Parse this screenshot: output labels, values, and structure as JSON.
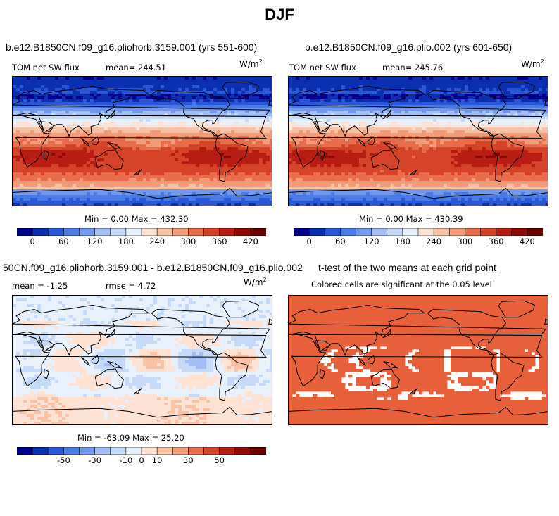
{
  "figure_title": "DJF",
  "chart_data": [
    {
      "type": "heatmap",
      "title": "b.e12.B1850CN.f09_g16.pliohorb.3159.001 (yrs 551-600)",
      "variable": "TOM net SW flux",
      "mean_label": "mean= 244.51",
      "units": "W/m",
      "units_exp": "2",
      "minmax_label": "Min =   0.00 Max = 432.30",
      "min": 0.0,
      "max": 432.3,
      "mean": 244.51,
      "colorbar": {
        "levels": [
          0,
          30,
          60,
          90,
          120,
          150,
          180,
          210,
          240,
          270,
          300,
          330,
          360,
          390,
          420
        ],
        "tick_labels": [
          "0",
          "60",
          "120",
          "180",
          "240",
          "300",
          "360",
          "420"
        ],
        "colors": [
          "#00008a",
          "#0a2fb0",
          "#2a57d6",
          "#4a7ae6",
          "#7399ef",
          "#a2bdf4",
          "#c5daf8",
          "#e7f0fb",
          "#fde2d3",
          "#f9c2a5",
          "#f29b78",
          "#e86d4c",
          "#d54328",
          "#b81d13",
          "#8e0b05",
          "#6b0000"
        ]
      }
    },
    {
      "type": "heatmap",
      "title": "b.e12.B1850CN.f09_g16.plio.002 (yrs 601-650)",
      "variable": "TOM net SW flux",
      "mean_label": "mean= 245.76",
      "units": "W/m",
      "units_exp": "2",
      "minmax_label": "Min =   0.00 Max = 430.39",
      "min": 0.0,
      "max": 430.39,
      "mean": 245.76,
      "colorbar": {
        "levels": [
          0,
          30,
          60,
          90,
          120,
          150,
          180,
          210,
          240,
          270,
          300,
          330,
          360,
          390,
          420
        ],
        "tick_labels": [
          "0",
          "60",
          "120",
          "180",
          "240",
          "300",
          "360",
          "420"
        ],
        "colors": [
          "#00008a",
          "#0a2fb0",
          "#2a57d6",
          "#4a7ae6",
          "#7399ef",
          "#a2bdf4",
          "#c5daf8",
          "#e7f0fb",
          "#fde2d3",
          "#f9c2a5",
          "#f29b78",
          "#e86d4c",
          "#d54328",
          "#b81d13",
          "#8e0b05",
          "#6b0000"
        ]
      }
    },
    {
      "type": "heatmap",
      "title": "50CN.f09_g16.pliohorb.3159.001 - b.e12.B1850CN.f09_g16.plio.002",
      "mean_label": "mean =  -1.25",
      "rmse_label": "rmse =   4.72",
      "units": "W/m",
      "units_exp": "2",
      "minmax_label": "Min = -63.09 Max =  25.20",
      "min": -63.09,
      "max": 25.2,
      "mean": -1.25,
      "rmse": 4.72,
      "colorbar": {
        "levels": [
          -70,
          -60,
          -50,
          -40,
          -30,
          -20,
          -10,
          0,
          10,
          20,
          30,
          40,
          50,
          60,
          70
        ],
        "tick_labels": [
          "-50",
          "-30",
          "-10",
          "0",
          "10",
          "30",
          "50"
        ],
        "colors": [
          "#00008a",
          "#0a2fb0",
          "#2a57d6",
          "#4a7ae6",
          "#7399ef",
          "#a2bdf4",
          "#c5daf8",
          "#e7f0fb",
          "#fde2d3",
          "#f9c2a5",
          "#f29b78",
          "#e86d4c",
          "#d54328",
          "#b81d13",
          "#8e0b05",
          "#6b0000"
        ]
      }
    },
    {
      "type": "heatmap",
      "title": "t-test of the two means at each grid point",
      "subtitle": "Colored cells are significant at the 0.05 level",
      "significant_color": "#e8603a"
    }
  ]
}
